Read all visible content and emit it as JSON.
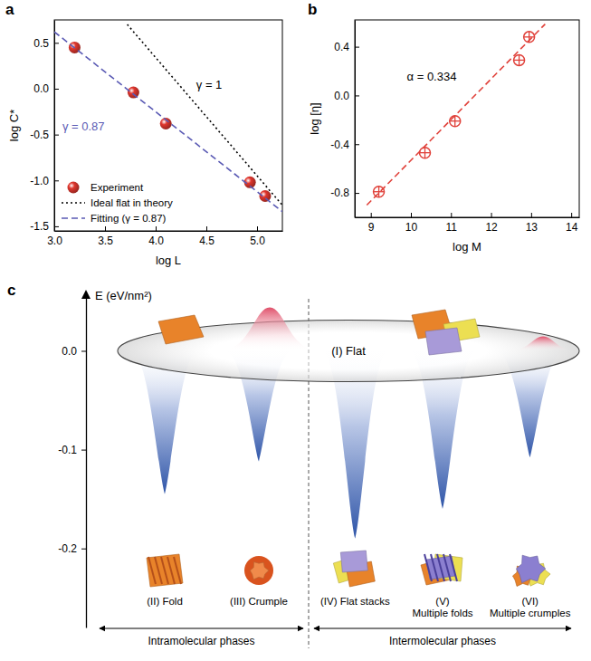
{
  "chart_data": [
    {
      "type": "scatter",
      "panel": "a",
      "xlabel": "log L",
      "ylabel": "log C*",
      "xlim": [
        3.0,
        5.25
      ],
      "ylim": [
        -1.55,
        0.75
      ],
      "xticks": [
        {
          "value": 3,
          "label": "3.0"
        },
        3.5,
        {
          "value": 4,
          "label": "4.0"
        },
        4.5,
        {
          "value": 5,
          "label": "5.0"
        }
      ],
      "yticks": [
        0.5,
        {
          "value": 0,
          "label": "0.0"
        },
        -0.5,
        {
          "value": -1,
          "label": "-1.0"
        },
        -1.5
      ],
      "grid": false,
      "legend": "lower left",
      "series": [
        {
          "name": "Experiment",
          "type": "scatter",
          "color": "#e0372e",
          "marker": "circle",
          "x": [
            3.2,
            3.78,
            4.1,
            4.93,
            5.08
          ],
          "values": [
            0.45,
            -0.04,
            -0.38,
            -1.02,
            -1.17
          ]
        },
        {
          "name": "Ideal flat in theory",
          "type": "line",
          "color": "#000000",
          "line_style": "dotted",
          "x": [
            3.72,
            5.25
          ],
          "values": [
            0.7,
            -1.27
          ]
        },
        {
          "name": "Fitting (γ = 0.87)",
          "type": "line",
          "color": "#5a5ab4",
          "line_style": "dashed",
          "x": [
            3.0,
            5.25
          ],
          "values": [
            0.62,
            -1.34
          ]
        }
      ],
      "annotations": [
        {
          "text": "γ = 0.87",
          "x": 3.08,
          "y": -0.45,
          "color": "#5a5ab4"
        },
        {
          "text": "γ = 1",
          "x": 4.4,
          "y": 0.0,
          "color": "#000000"
        }
      ]
    },
    {
      "type": "scatter",
      "panel": "b",
      "xlabel": "log M",
      "ylabel": "log [η]",
      "xlim": [
        8.6,
        14.2
      ],
      "ylim": [
        -1.0,
        0.62
      ],
      "xticks": [
        9,
        10,
        11,
        12,
        13,
        14
      ],
      "yticks": [
        0.4,
        {
          "value": 0,
          "label": "0.0"
        },
        -0.4,
        -0.8
      ],
      "grid": false,
      "series": [
        {
          "type": "scatter",
          "color": "#e0413a",
          "marker": "circle-cross",
          "x": [
            9.2,
            10.35,
            11.1,
            12.7,
            12.95
          ],
          "values": [
            -0.79,
            -0.47,
            -0.21,
            0.29,
            0.48
          ]
        },
        {
          "type": "line",
          "color": "#e0413a",
          "line_style": "dashed",
          "x": [
            8.9,
            13.35
          ],
          "values": [
            -0.9,
            0.586
          ]
        }
      ],
      "annotations": [
        {
          "text": "α = 0.334",
          "x": 9.9,
          "y": 0.12,
          "color": "#000000"
        }
      ]
    },
    {
      "type": "energy_landscape",
      "panel": "c",
      "ylabel": "E (eV/nm²)",
      "ylim": [
        -0.28,
        0.06
      ],
      "yticks": [
        {
          "value": 0,
          "label": "0.0"
        },
        {
          "value": -0.1,
          "label": "-0.1"
        },
        {
          "value": -0.2,
          "label": "-0.2"
        }
      ],
      "plane": {
        "name": "(I) Flat",
        "value": 0
      },
      "series": [
        {
          "name": "Intramolecular phases",
          "color": "#2f55a8",
          "categories": [
            "(II) Fold",
            "(III) Crumple"
          ],
          "values": [
            -0.145,
            -0.112
          ]
        },
        {
          "name": "Intermolecular phases",
          "color": "#2f55a8",
          "categories": [
            "(IV) Flat stacks",
            "(V) Multiple folds",
            "(VI) Multiple crumples"
          ],
          "values": [
            -0.19,
            -0.16,
            -0.108
          ]
        }
      ]
    }
  ]
}
